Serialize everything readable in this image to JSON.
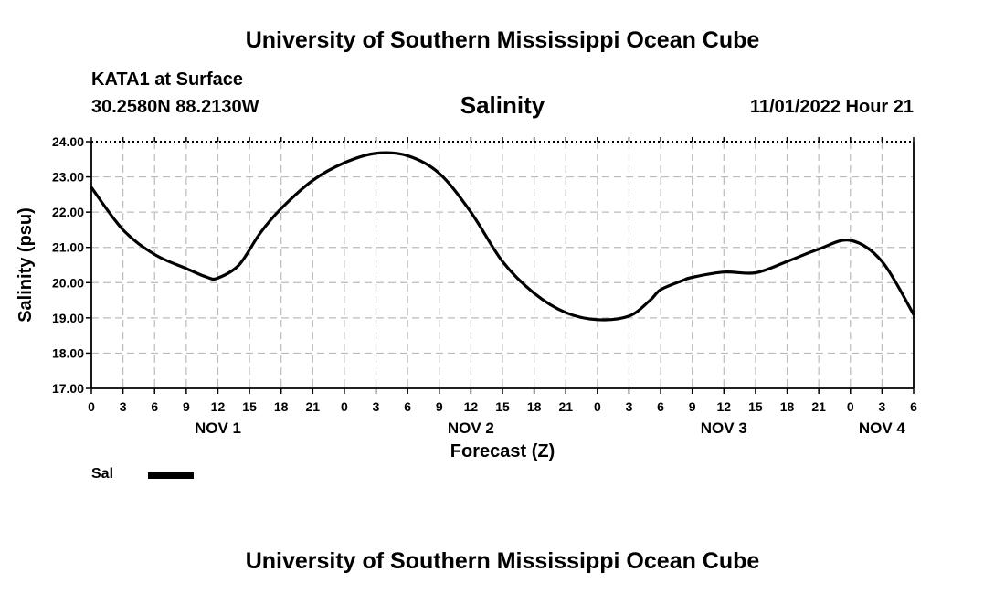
{
  "header": {
    "title": "University of Southern Mississippi Ocean Cube",
    "station": "KATA1 at Surface",
    "coordinates": "30.2580N  88.2130W",
    "variable_title": "Salinity",
    "datetime": "11/01/2022 Hour 21"
  },
  "footer": {
    "title": "University of Southern Mississippi Ocean Cube"
  },
  "legend": {
    "label": "Sal"
  },
  "colors": {
    "line": "#000000",
    "grid": "#bbbbbb",
    "axis": "#000000",
    "background": "#ffffff"
  },
  "chart_data": {
    "type": "line",
    "title": "Salinity",
    "xlabel": "Forecast (Z)",
    "ylabel": "Salinity (psu)",
    "ylim": [
      17,
      24
    ],
    "yticks": [
      "17.00",
      "18.00",
      "19.00",
      "20.00",
      "21.00",
      "22.00",
      "23.00",
      "24.00"
    ],
    "xlim": [
      0,
      78
    ],
    "xtick_step_hours": 3,
    "xtick_labels": [
      "0",
      "3",
      "6",
      "9",
      "12",
      "15",
      "18",
      "21",
      "0",
      "3",
      "6",
      "9",
      "12",
      "15",
      "18",
      "21",
      "0",
      "3",
      "6",
      "9",
      "12",
      "15",
      "18",
      "21",
      "0",
      "3",
      "6"
    ],
    "day_labels": [
      {
        "hour": 12,
        "label": "NOV 1"
      },
      {
        "hour": 36,
        "label": "NOV 2"
      },
      {
        "hour": 60,
        "label": "NOV 3"
      },
      {
        "hour": 75,
        "label": "NOV 4"
      }
    ],
    "grid": true,
    "series": [
      {
        "name": "Sal",
        "x": [
          0,
          3,
          6,
          9,
          11,
          12,
          14,
          16,
          18,
          21,
          24,
          27,
          30,
          33,
          36,
          39,
          42,
          45,
          48,
          51,
          53,
          54,
          56,
          57,
          60,
          63,
          66,
          69,
          72,
          75,
          78
        ],
        "values": [
          22.7,
          21.5,
          20.8,
          20.4,
          20.15,
          20.13,
          20.5,
          21.4,
          22.1,
          22.9,
          23.4,
          23.67,
          23.6,
          23.1,
          22.0,
          20.6,
          19.7,
          19.15,
          18.95,
          19.05,
          19.5,
          19.8,
          20.05,
          20.15,
          20.3,
          20.28,
          20.6,
          20.95,
          21.2,
          20.6,
          19.1
        ]
      }
    ]
  }
}
